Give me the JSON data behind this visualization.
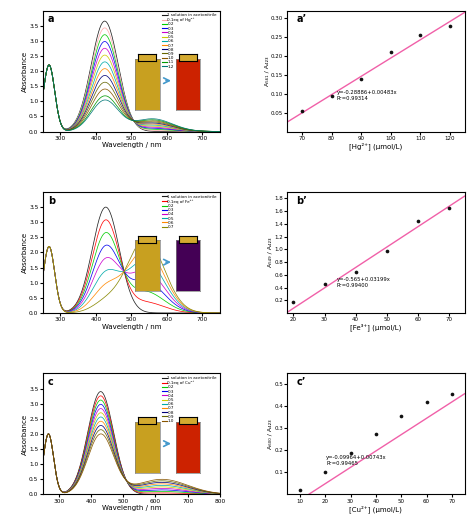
{
  "panel_a": {
    "label": "a",
    "legend_lines": [
      "1 solution in acetonitrile",
      "0.1eq of Hg²⁺",
      "0.2",
      "0.3",
      "0.4",
      "0.5",
      "0.6",
      "0.7",
      "0.8",
      "0.9",
      "1.0",
      "1.1",
      "1.2"
    ],
    "colors": [
      "#1a1a1a",
      "#ffaaaa",
      "#00cc00",
      "#0000ee",
      "#cc00cc",
      "#cccc00",
      "#00aaaa",
      "#ff8800",
      "#000077",
      "#666600",
      "#885500",
      "#009900",
      "#007777"
    ],
    "xlabel": "Wavelength / nm",
    "ylabel": "Absorbance",
    "xlim": [
      250,
      750
    ],
    "ylim": [
      0.0,
      4.0
    ],
    "yticks": [
      0.0,
      0.5,
      1.0,
      1.5,
      2.0,
      2.5,
      3.0,
      3.5
    ],
    "xticks": [
      300,
      400,
      500,
      600,
      700
    ]
  },
  "panel_b": {
    "label": "b",
    "legend_lines": [
      "1 solution in acetonitrile",
      "0.1eq of Fe³⁺",
      "0.2",
      "0.3",
      "0.4",
      "0.5",
      "0.6",
      "0.7"
    ],
    "colors": [
      "#1a1a1a",
      "#ff0000",
      "#00cc00",
      "#0000ee",
      "#cc00cc",
      "#00aaaa",
      "#ff8800",
      "#888800"
    ],
    "xlabel": "Wavelength / nm",
    "ylabel": "Absorbance",
    "xlim": [
      250,
      750
    ],
    "ylim": [
      0.0,
      4.0
    ],
    "yticks": [
      0.0,
      0.5,
      1.0,
      1.5,
      2.0,
      2.5,
      3.0,
      3.5
    ],
    "xticks": [
      300,
      400,
      500,
      600,
      700
    ]
  },
  "panel_c": {
    "label": "c",
    "legend_lines": [
      "1 solution in acetonitrile",
      "0.1eq of Cu²⁺",
      "0.2",
      "0.3",
      "0.4",
      "0.5",
      "0.6",
      "0.7",
      "0.8",
      "0.9",
      "1.0"
    ],
    "colors": [
      "#1a1a1a",
      "#ff0000",
      "#00cc00",
      "#0000ee",
      "#cc00cc",
      "#cccc00",
      "#00aaaa",
      "#ff8800",
      "#000077",
      "#666600",
      "#885500"
    ],
    "xlabel": "Wavelength / nm",
    "ylabel": "Absorbance",
    "xlim": [
      250,
      800
    ],
    "ylim": [
      0.0,
      4.0
    ],
    "yticks": [
      0.0,
      0.5,
      1.0,
      1.5,
      2.0,
      2.5,
      3.0,
      3.5
    ],
    "xticks": [
      300,
      400,
      500,
      600,
      700,
      800
    ]
  },
  "panel_ap": {
    "label": "a’",
    "xlabel": "[Hg²⁺] (μmol/L)",
    "ylabel": "A₅₆₁ / A₄₂₃",
    "x_data": [
      70,
      80,
      90,
      100,
      110,
      120
    ],
    "y_data": [
      0.055,
      0.095,
      0.14,
      0.21,
      0.255,
      0.28
    ],
    "xlim": [
      65,
      125
    ],
    "ylim": [
      0.0,
      0.32
    ],
    "yticks": [
      0.05,
      0.1,
      0.15,
      0.2,
      0.25,
      0.3
    ],
    "xticks": [
      70,
      80,
      90,
      100,
      110,
      120
    ],
    "eq_text": "y=-0.28886+0.00483x\nR²=0.99314",
    "slope": 0.00483,
    "intercept": -0.28886
  },
  "panel_bp": {
    "label": "b’",
    "xlabel": "[Fe³⁺] (μmol/L)",
    "ylabel": "A₅₄₉ / A₄₂₃",
    "x_data": [
      20,
      30,
      40,
      50,
      60,
      70
    ],
    "y_data": [
      0.18,
      0.45,
      0.65,
      0.97,
      1.45,
      1.65
    ],
    "xlim": [
      18,
      75
    ],
    "ylim": [
      0.0,
      1.9
    ],
    "yticks": [
      0.2,
      0.4,
      0.6,
      0.8,
      1.0,
      1.2,
      1.4,
      1.6,
      1.8
    ],
    "xticks": [
      20,
      30,
      40,
      50,
      60,
      70
    ],
    "eq_text": "y=-0.565+0.03199x\nR²=0.99400",
    "slope": 0.03199,
    "intercept": -0.565
  },
  "panel_cp": {
    "label": "c’",
    "xlabel": "[Cu²⁺] (μmol/L)",
    "ylabel": "A₆₀₀ / A₄₂₃",
    "x_data": [
      10,
      20,
      30,
      40,
      50,
      60,
      70
    ],
    "y_data": [
      0.02,
      0.1,
      0.19,
      0.275,
      0.355,
      0.42,
      0.455
    ],
    "xlim": [
      5,
      75
    ],
    "ylim": [
      0.0,
      0.55
    ],
    "yticks": [
      0.1,
      0.2,
      0.3,
      0.4,
      0.5
    ],
    "xticks": [
      10,
      20,
      30,
      40,
      50,
      60,
      70
    ],
    "eq_text": "y=-0.09964+0.00743x\nR²=0.99465",
    "slope": 0.00743,
    "intercept": -0.09964
  },
  "line_color": "#ee4499",
  "dot_color": "#111111",
  "bg_color": "#ffffff",
  "vial_a_left": "#c8a020",
  "vial_a_right": "#cc2200",
  "vial_b_left": "#c8a020",
  "vial_b_right": "#440055",
  "vial_c_left": "#c8a020",
  "vial_c_right": "#cc2200"
}
